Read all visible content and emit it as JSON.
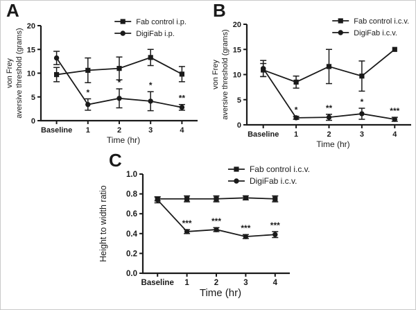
{
  "figure": {
    "type": "scientific-multipanel-figure",
    "background": "#ffffff",
    "border_color": "#c9c9c9",
    "ink_color": "#1a1a1a"
  },
  "chart_data": [
    {
      "panel_label": "A",
      "type": "line",
      "categories": [
        "Baseline",
        "1",
        "2",
        "3",
        "4"
      ],
      "xlabel": "Time (hr)",
      "ylabel_lines": [
        "von Frey",
        "aversive threshold (grams)"
      ],
      "ylim": [
        0,
        20
      ],
      "yticks": [
        0,
        5,
        10,
        15,
        20
      ],
      "ytick_format": "int",
      "grid": false,
      "legend_position": "top-right",
      "error_bars": true,
      "series": [
        {
          "name": "Fab control i.p.",
          "marker": "square",
          "values": [
            9.7,
            10.6,
            11.0,
            13.3,
            9.8
          ],
          "errors": [
            1.5,
            2.6,
            2.4,
            1.7,
            1.6
          ]
        },
        {
          "name": "DigiFab i.p.",
          "marker": "circle",
          "values": [
            13.2,
            3.4,
            4.7,
            4.1,
            2.8
          ],
          "errors": [
            1.4,
            1.2,
            2.0,
            2.0,
            0.6
          ]
        }
      ],
      "annotations": [
        {
          "x_index": 1,
          "series_index": 1,
          "text": "*"
        },
        {
          "x_index": 2,
          "series_index": 1,
          "text": "*"
        },
        {
          "x_index": 3,
          "series_index": 1,
          "text": "*"
        },
        {
          "x_index": 4,
          "series_index": 1,
          "text": "**"
        }
      ]
    },
    {
      "panel_label": "B",
      "type": "line",
      "categories": [
        "Baseline",
        "1",
        "2",
        "3",
        "4"
      ],
      "xlabel": "Time (hr)",
      "ylabel_lines": [
        "von Frey",
        "aversive threshold (grams)"
      ],
      "ylim": [
        0,
        20
      ],
      "yticks": [
        0,
        5,
        10,
        15,
        20
      ],
      "ytick_format": "int",
      "grid": false,
      "legend_position": "top-right",
      "error_bars": true,
      "series": [
        {
          "name": "Fab control i.c.v.",
          "marker": "square",
          "values": [
            10.9,
            8.5,
            11.6,
            9.7,
            15.0
          ],
          "errors": [
            1.3,
            1.2,
            3.4,
            3.0,
            0
          ]
        },
        {
          "name": "DigiFab i.c.v.",
          "marker": "circle",
          "values": [
            11.2,
            1.4,
            1.5,
            2.2,
            1.1
          ],
          "errors": [
            1.6,
            0.3,
            0.6,
            1.1,
            0.4
          ]
        }
      ],
      "annotations": [
        {
          "x_index": 1,
          "series_index": 1,
          "text": "*"
        },
        {
          "x_index": 2,
          "series_index": 1,
          "text": "**"
        },
        {
          "x_index": 3,
          "series_index": 1,
          "text": "*"
        },
        {
          "x_index": 4,
          "series_index": 1,
          "text": "***"
        }
      ]
    },
    {
      "panel_label": "C",
      "type": "line",
      "categories": [
        "Baseline",
        "1",
        "2",
        "3",
        "4"
      ],
      "xlabel": "Time (hr)",
      "ylabel_lines": [
        "Height to width ratio"
      ],
      "ylim": [
        0,
        1.0
      ],
      "yticks": [
        0,
        0.2,
        0.4,
        0.6,
        0.8,
        1.0
      ],
      "ytick_format": "one_decimal",
      "grid": false,
      "legend_position": "top-right",
      "error_bars": true,
      "series": [
        {
          "name": "Fab control i.c.v.",
          "marker": "square",
          "values": [
            0.75,
            0.75,
            0.75,
            0.76,
            0.75
          ],
          "errors": [
            0.02,
            0.03,
            0.03,
            0.02,
            0.03
          ]
        },
        {
          "name": "DigiFab i.c.v.",
          "marker": "circle",
          "values": [
            0.74,
            0.42,
            0.44,
            0.37,
            0.39
          ],
          "errors": [
            0.03,
            0.02,
            0.02,
            0.02,
            0.03
          ]
        }
      ],
      "annotations": [
        {
          "x_index": 1,
          "series_index": 1,
          "text": "***"
        },
        {
          "x_index": 2,
          "series_index": 1,
          "text": "***"
        },
        {
          "x_index": 3,
          "series_index": 1,
          "text": "***"
        },
        {
          "x_index": 4,
          "series_index": 1,
          "text": "***"
        }
      ]
    }
  ]
}
